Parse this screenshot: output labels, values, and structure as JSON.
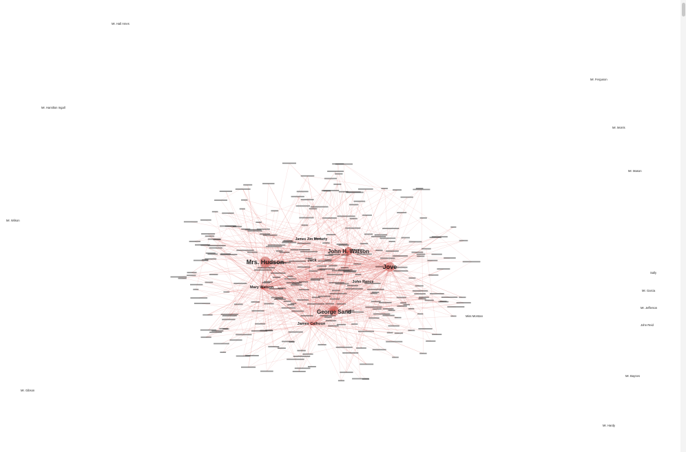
{
  "graph": {
    "hubs": [
      {
        "id": "hudson",
        "label": "Mrs. Hudson"
      },
      {
        "id": "watson",
        "label": "John H. Watson"
      },
      {
        "id": "jove",
        "label": "Jove"
      },
      {
        "id": "sand",
        "label": "George Sand"
      }
    ],
    "secondary": [
      {
        "id": "jack",
        "label": "Jack"
      },
      {
        "id": "mary",
        "label": "Mary Watson"
      },
      {
        "id": "moriarty",
        "label": "James Jim Moriarty"
      },
      {
        "id": "calhoun",
        "label": "James Calhoun"
      },
      {
        "id": "johnrance",
        "label": "John Rance"
      }
    ],
    "outliers": [
      {
        "id": "o1",
        "label": "Mr. Hall Ames"
      },
      {
        "id": "o2",
        "label": "Mr. Hamilton Ingall"
      },
      {
        "id": "o3",
        "label": "Mr. Wilson"
      },
      {
        "id": "o4",
        "label": "Mr. Gibson"
      },
      {
        "id": "o5",
        "label": "Mr. Ferguson"
      },
      {
        "id": "o6",
        "label": "Mr. Morris"
      },
      {
        "id": "o7",
        "label": "Sally"
      },
      {
        "id": "o8",
        "label": "Mr. Mason"
      },
      {
        "id": "o9",
        "label": "Mr. Garcia"
      },
      {
        "id": "o10",
        "label": "Mr. Jefferson"
      },
      {
        "id": "o11",
        "label": "John Reid"
      },
      {
        "id": "o12",
        "label": "Mr. Baynes"
      },
      {
        "id": "o13",
        "label": "Mr. Hardy"
      },
      {
        "id": "o14",
        "label": "Miss Morstan"
      }
    ]
  }
}
